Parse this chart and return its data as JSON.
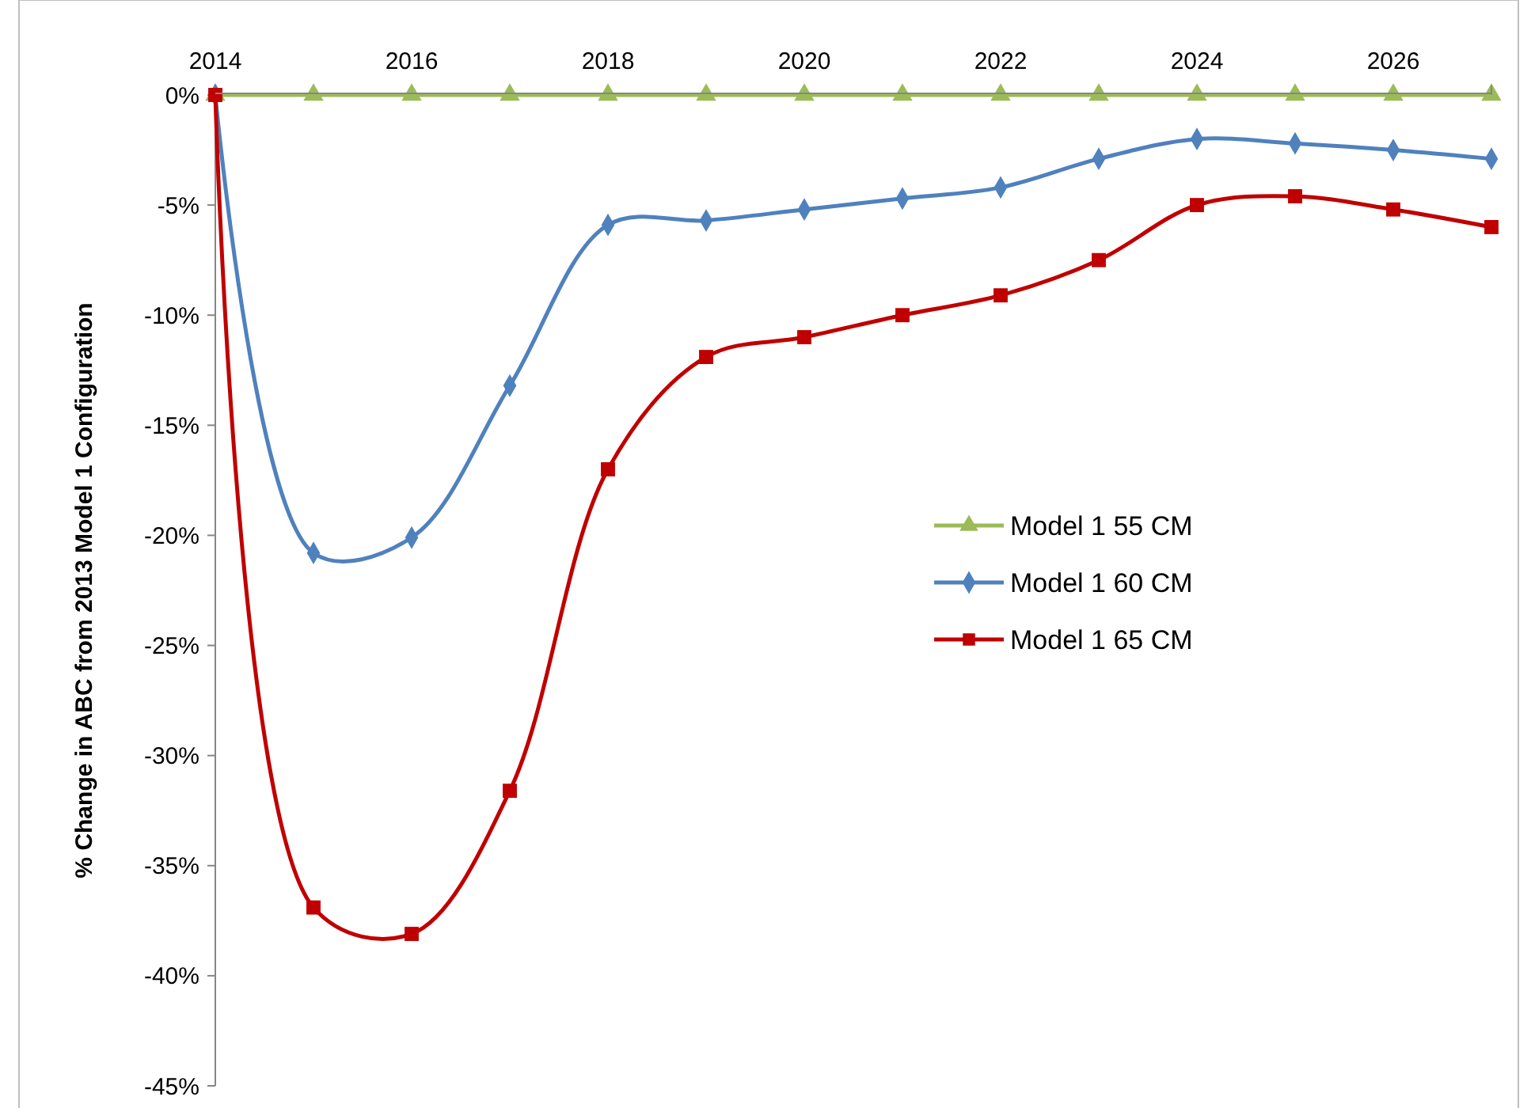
{
  "chart_data": {
    "type": "line",
    "ylabel": "% Change in ABC from 2013 Model 1 Configuration",
    "x": [
      2014,
      2015,
      2016,
      2017,
      2018,
      2019,
      2020,
      2021,
      2022,
      2023,
      2024,
      2025,
      2026,
      2027
    ],
    "series": [
      {
        "name": "Model 1 55 CM",
        "color": "#9bbb59",
        "marker": "triangle",
        "values": [
          0,
          0,
          0,
          0,
          0,
          0,
          0,
          0,
          0,
          0,
          0,
          0,
          0,
          0
        ]
      },
      {
        "name": "Model 1 60 CM",
        "color": "#4f81bd",
        "marker": "diamond",
        "values": [
          0,
          -20.8,
          -20.1,
          -13.2,
          -5.9,
          -5.7,
          -5.2,
          -4.7,
          -4.2,
          -2.9,
          -2.0,
          -2.2,
          -2.5,
          -2.9
        ]
      },
      {
        "name": "Model 1 65 CM",
        "color": "#c00000",
        "marker": "square",
        "values": [
          0,
          -36.9,
          -38.1,
          -31.6,
          -17.0,
          -11.9,
          -11.0,
          -10.0,
          -9.1,
          -7.5,
          -5.0,
          -4.6,
          -5.2,
          -6.0
        ]
      }
    ],
    "xlim": [
      2014,
      2027
    ],
    "xticks": [
      2014,
      2016,
      2018,
      2020,
      2022,
      2024,
      2026
    ],
    "ylim": [
      -45,
      0
    ],
    "yticks": [
      {
        "value": 0,
        "label": "0%"
      },
      {
        "value": -5,
        "label": "-5%"
      },
      {
        "value": -10,
        "label": "-10%"
      },
      {
        "value": -15,
        "label": "-15%"
      },
      {
        "value": -20,
        "label": "-20%"
      },
      {
        "value": -25,
        "label": "-25%"
      },
      {
        "value": -30,
        "label": "-30%"
      },
      {
        "value": -35,
        "label": "-35%"
      },
      {
        "value": -40,
        "label": "-40%"
      },
      {
        "value": -45,
        "label": "-45%"
      }
    ],
    "grid": false,
    "legend": "right",
    "line_style": "solid"
  }
}
